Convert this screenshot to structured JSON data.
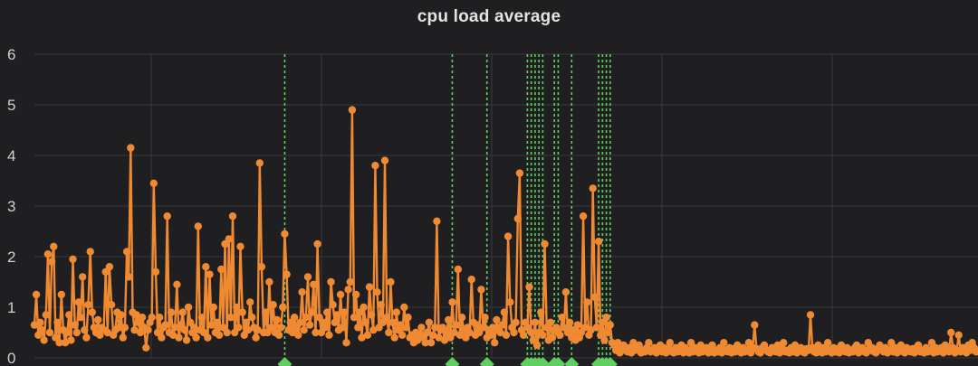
{
  "panel": {
    "title": "cpu load average"
  },
  "colors": {
    "background": "#1f1f21",
    "grid": "#3a3a3c",
    "series": "#f08a32",
    "annotation": "#5fcf5f",
    "text": "#d0d0d0"
  },
  "chart_data": {
    "type": "line",
    "title": "cpu load average",
    "xlabel": "",
    "ylabel": "",
    "ylim": [
      0,
      6
    ],
    "y_ticks": [
      "0",
      "1",
      "2",
      "3",
      "4",
      "5",
      "6"
    ],
    "grid": true,
    "annotations": {
      "type": "vertical-dashed-markers",
      "x": [
        130,
        217,
        235,
        256,
        258,
        260,
        262,
        264,
        270,
        272,
        279,
        293,
        295,
        297,
        299
      ]
    },
    "series": [
      {
        "values": [
          0.65,
          1.25,
          0.45,
          0.7,
          0.55,
          0.35,
          0.85,
          2.05,
          0.5,
          1.9,
          2.2,
          0.4,
          0.7,
          0.3,
          1.25,
          0.55,
          0.3,
          0.5,
          0.85,
          0.35,
          1.95,
          0.65,
          0.5,
          1.1,
          0.8,
          1.6,
          0.55,
          0.4,
          1.05,
          2.1,
          0.9,
          0.6,
          0.5,
          0.75,
          0.45,
          0.6,
          0.55,
          1.7,
          0.5,
          1.8,
          1.05,
          0.45,
          0.55,
          0.9,
          0.6,
          0.85,
          0.4,
          0.6,
          2.1,
          1.6,
          4.15,
          0.9,
          0.55,
          0.85,
          0.7,
          0.5,
          0.8,
          0.6,
          0.2,
          0.55,
          0.7,
          0.8,
          3.45,
          1.7,
          0.5,
          0.8,
          0.4,
          0.6,
          0.65,
          2.8,
          0.5,
          0.9,
          0.45,
          0.6,
          1.45,
          0.4,
          0.65,
          0.9,
          0.55,
          0.35,
          1.0,
          0.7,
          0.5,
          0.6,
          0.4,
          2.6,
          0.55,
          0.8,
          0.5,
          1.8,
          0.4,
          1.65,
          0.65,
          1.0,
          0.5,
          0.7,
          0.45,
          1.75,
          0.6,
          2.25,
          0.5,
          2.35,
          0.8,
          2.8,
          0.5,
          1.0,
          0.6,
          2.2,
          0.9,
          0.45,
          0.7,
          0.55,
          1.1,
          0.8,
          0.6,
          0.4,
          0.55,
          3.85,
          1.8,
          0.5,
          0.9,
          0.5,
          1.5,
          0.6,
          1.05,
          0.5,
          0.75,
          0.45,
          0.6,
          1.0,
          2.45,
          1.65,
          0.55,
          0.7,
          0.5,
          0.8,
          0.6,
          0.45,
          0.7,
          1.3,
          0.55,
          0.8,
          1.6,
          0.65,
          0.9,
          1.45,
          0.5,
          2.25,
          0.8,
          0.5,
          0.7,
          0.6,
          0.9,
          0.45,
          1.5,
          1.05,
          0.7,
          0.85,
          0.55,
          1.25,
          0.6,
          0.9,
          0.3,
          1.35,
          1.5,
          4.9,
          0.8,
          1.25,
          0.6,
          0.9,
          0.4,
          1.0,
          0.7,
          0.45,
          1.4,
          0.85,
          0.55,
          3.8,
          1.3,
          0.6,
          1.05,
          0.7,
          3.9,
          0.8,
          0.5,
          1.5,
          0.7,
          0.4,
          0.9,
          0.55,
          0.65,
          0.45,
          1.0,
          0.6,
          0.8,
          0.4,
          0.45,
          0.3,
          0.5,
          0.35,
          0.45,
          0.6,
          0.4,
          0.3,
          0.5,
          0.7,
          0.3,
          0.45,
          0.6,
          2.7,
          0.4,
          0.55,
          0.6,
          0.35,
          0.5,
          0.75,
          0.4,
          1.1,
          0.5,
          0.65,
          1.75,
          0.45,
          0.8,
          0.55,
          0.4,
          0.6,
          0.5,
          1.55,
          0.7,
          0.45,
          0.65,
          0.5,
          1.35,
          0.6,
          0.8,
          0.4,
          0.55,
          0.45,
          0.6,
          0.3,
          0.75,
          0.55,
          0.5,
          0.65,
          0.9,
          0.45,
          2.4,
          1.1,
          0.6,
          0.5,
          0.7,
          2.75,
          3.65,
          0.55,
          0.45,
          0.7,
          0.6,
          1.4,
          0.5,
          0.35,
          0.7,
          0.25,
          0.5,
          0.9,
          0.45,
          2.25,
          0.6,
          0.35,
          0.7,
          0.4,
          0.55,
          0.6,
          0.5,
          0.45,
          0.8,
          0.6,
          1.3,
          0.5,
          0.7,
          0.4,
          0.55,
          0.35,
          0.65,
          0.4,
          0.5,
          2.8,
          0.6,
          1.1,
          0.45,
          0.55,
          3.35,
          1.2,
          0.6,
          2.3,
          0.45,
          0.7,
          0.35,
          0.8,
          0.5,
          0.65,
          0.3,
          0.25,
          0.15,
          0.3,
          0.1,
          0.2,
          0.25,
          0.15,
          0.12,
          0.2,
          0.1,
          0.3,
          0.15,
          0.2,
          0.25,
          0.1,
          0.15,
          0.12,
          0.2,
          0.3,
          0.12,
          0.15,
          0.2,
          0.1,
          0.15,
          0.25,
          0.12,
          0.2,
          0.1,
          0.18,
          0.3,
          0.12,
          0.1,
          0.2,
          0.12,
          0.15,
          0.25,
          0.1,
          0.2,
          0.15,
          0.1,
          0.3,
          0.12,
          0.2,
          0.15,
          0.1,
          0.25,
          0.12,
          0.15,
          0.2,
          0.1,
          0.18,
          0.25,
          0.1,
          0.15,
          0.12,
          0.2,
          0.1,
          0.3,
          0.15,
          0.12,
          0.2,
          0.1,
          0.18,
          0.12,
          0.25,
          0.15,
          0.1,
          0.2,
          0.12,
          0.15,
          0.3,
          0.1,
          0.2,
          0.65,
          0.18,
          0.12,
          0.1,
          0.2,
          0.25,
          0.15,
          0.12,
          0.1,
          0.2,
          0.15,
          0.12,
          0.25,
          0.1,
          0.18,
          0.3,
          0.12,
          0.15,
          0.1,
          0.2,
          0.12,
          0.25,
          0.1,
          0.15,
          0.2,
          0.12,
          0.1,
          0.18,
          0.15,
          0.85,
          0.2,
          0.12,
          0.1,
          0.25,
          0.15,
          0.1,
          0.2,
          0.12,
          0.3,
          0.15,
          0.1,
          0.2,
          0.12,
          0.18,
          0.1,
          0.25,
          0.15,
          0.12,
          0.2,
          0.1,
          0.15,
          0.12,
          0.2,
          0.25,
          0.1,
          0.15,
          0.2,
          0.12,
          0.1,
          0.3,
          0.15,
          0.2,
          0.12,
          0.1,
          0.18,
          0.25,
          0.15,
          0.12,
          0.2,
          0.1,
          0.15,
          0.3,
          0.12,
          0.2,
          0.1,
          0.15,
          0.25,
          0.12,
          0.1,
          0.2,
          0.15,
          0.12,
          0.18,
          0.1,
          0.2,
          0.25,
          0.12,
          0.15,
          0.1,
          0.2,
          0.12,
          0.15,
          0.3,
          0.1,
          0.2,
          0.12,
          0.15,
          0.2,
          0.1,
          0.25,
          0.15,
          0.12,
          0.5,
          0.2,
          0.1,
          0.15,
          0.45,
          0.12,
          0.2,
          0.18,
          0.1,
          0.25,
          0.15,
          0.3,
          0.2,
          0.12,
          0.15
        ]
      }
    ]
  }
}
